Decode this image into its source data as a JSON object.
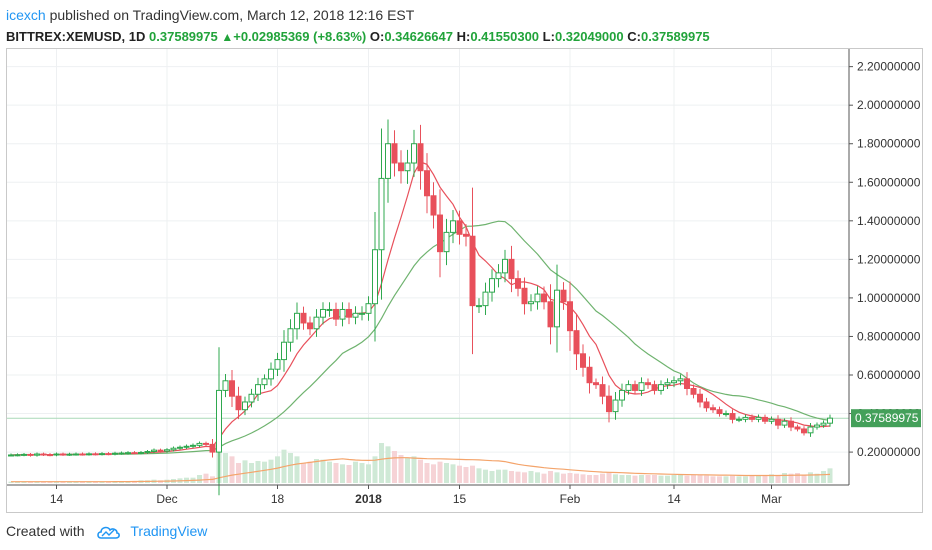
{
  "header": {
    "author": "icexch",
    "published_text": "published on TradingView.com, March 12, 2018 12:16 EST",
    "symbol": "BITTREX:XEMUSD, 1D",
    "last": "0.37589975",
    "change_arrow": "▲",
    "change": "+0.02985369 (+8.63%)",
    "o_label": "O:",
    "o_value": "0.34626647",
    "h_label": "H:",
    "h_value": "0.41550300",
    "l_label": "L:",
    "l_value": "0.32049000",
    "c_label": "C:",
    "c_value": "0.37589975"
  },
  "footer": {
    "created_with": "Created with",
    "brand": "TradingView"
  },
  "colors": {
    "up": "#2fa84f",
    "down": "#e8505b",
    "ma_fast": "#e8505b",
    "ma_slow": "#6fb36f",
    "volume_ma": "#f4a46b",
    "price_line": "#a9d9b7",
    "last_label": "#44a05a",
    "grid": "#eef0f2"
  },
  "chart_data": {
    "type": "candlestick",
    "ylim": [
      0.05,
      2.25
    ],
    "y_ticks": [
      "2.20000000",
      "2.00000000",
      "1.80000000",
      "1.60000000",
      "1.40000000",
      "1.20000000",
      "1.00000000",
      "0.80000000",
      "0.60000000",
      "0.40000000",
      "0.20000000"
    ],
    "y_tick_values": [
      2.2,
      2.0,
      1.8,
      1.6,
      1.4,
      1.2,
      1.0,
      0.8,
      0.6,
      0.4,
      0.2
    ],
    "x_ticks": [
      {
        "label": "14",
        "index": 7
      },
      {
        "label": "Dec",
        "index": 24
      },
      {
        "label": "18",
        "index": 41
      },
      {
        "label": "2018",
        "index": 55,
        "bold": true
      },
      {
        "label": "15",
        "index": 69
      },
      {
        "label": "Feb",
        "index": 86
      },
      {
        "label": "14",
        "index": 102
      },
      {
        "label": "Mar",
        "index": 117
      }
    ],
    "last_price_label": "0.37589975",
    "last_price": 0.37589975,
    "close": [
      0.185,
      0.186,
      0.188,
      0.184,
      0.19,
      0.187,
      0.186,
      0.19,
      0.188,
      0.189,
      0.19,
      0.189,
      0.191,
      0.19,
      0.192,
      0.191,
      0.194,
      0.195,
      0.197,
      0.196,
      0.198,
      0.203,
      0.21,
      0.205,
      0.212,
      0.22,
      0.225,
      0.23,
      0.235,
      0.245,
      0.24,
      0.2,
      0.52,
      0.57,
      0.49,
      0.42,
      0.46,
      0.5,
      0.55,
      0.58,
      0.63,
      0.68,
      0.77,
      0.84,
      0.92,
      0.87,
      0.84,
      0.9,
      0.94,
      0.94,
      0.89,
      0.94,
      0.9,
      0.92,
      0.92,
      0.97,
      1.25,
      1.62,
      1.8,
      1.7,
      1.66,
      1.7,
      1.8,
      1.66,
      1.53,
      1.43,
      1.24,
      1.34,
      1.4,
      1.33,
      1.32,
      0.96,
      0.96,
      1.03,
      1.1,
      1.13,
      1.2,
      1.1,
      1.05,
      0.97,
      0.98,
      1.02,
      0.98,
      0.85,
      1.04,
      0.98,
      0.83,
      0.71,
      0.64,
      0.56,
      0.55,
      0.49,
      0.41,
      0.47,
      0.52,
      0.55,
      0.52,
      0.56,
      0.55,
      0.52,
      0.55,
      0.56,
      0.57,
      0.58,
      0.53,
      0.5,
      0.46,
      0.43,
      0.42,
      0.4,
      0.4,
      0.37,
      0.37,
      0.38,
      0.37,
      0.38,
      0.36,
      0.37,
      0.34,
      0.36,
      0.33,
      0.32,
      0.3,
      0.33,
      0.34,
      0.35,
      0.376
    ],
    "volume": [
      0.02,
      0.02,
      0.02,
      0.02,
      0.02,
      0.02,
      0.02,
      0.02,
      0.02,
      0.02,
      0.02,
      0.02,
      0.02,
      0.02,
      0.02,
      0.02,
      0.03,
      0.03,
      0.03,
      0.03,
      0.04,
      0.04,
      0.05,
      0.04,
      0.05,
      0.06,
      0.07,
      0.08,
      0.08,
      0.12,
      0.14,
      0.1,
      0.5,
      0.45,
      0.4,
      0.3,
      0.34,
      0.3,
      0.33,
      0.32,
      0.35,
      0.4,
      0.5,
      0.45,
      0.4,
      0.3,
      0.32,
      0.36,
      0.35,
      0.32,
      0.3,
      0.28,
      0.27,
      0.32,
      0.3,
      0.28,
      0.4,
      0.6,
      0.55,
      0.48,
      0.42,
      0.38,
      0.4,
      0.35,
      0.3,
      0.28,
      0.32,
      0.3,
      0.28,
      0.26,
      0.24,
      0.26,
      0.22,
      0.2,
      0.18,
      0.2,
      0.2,
      0.18,
      0.17,
      0.16,
      0.18,
      0.16,
      0.14,
      0.18,
      0.16,
      0.14,
      0.15,
      0.14,
      0.13,
      0.12,
      0.12,
      0.14,
      0.16,
      0.13,
      0.12,
      0.12,
      0.11,
      0.12,
      0.12,
      0.12,
      0.11,
      0.11,
      0.12,
      0.12,
      0.11,
      0.12,
      0.12,
      0.11,
      0.1,
      0.1,
      0.1,
      0.11,
      0.1,
      0.1,
      0.12,
      0.12,
      0.12,
      0.13,
      0.12,
      0.15,
      0.14,
      0.15,
      0.12,
      0.16,
      0.14,
      0.18,
      0.22
    ]
  }
}
